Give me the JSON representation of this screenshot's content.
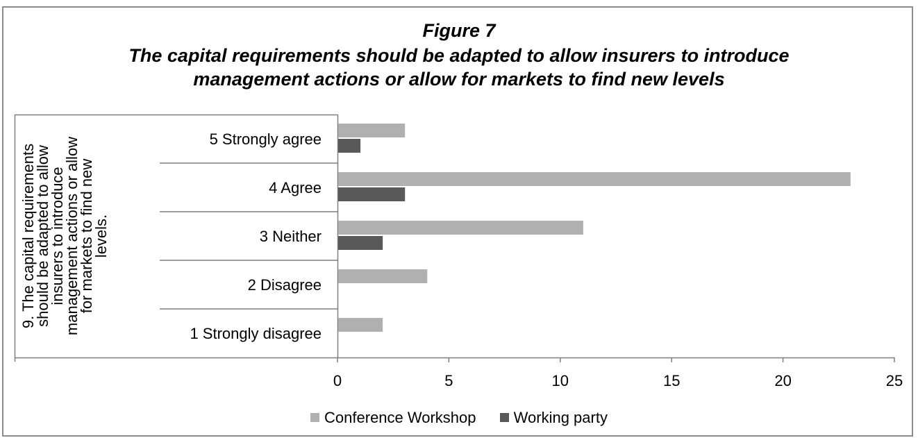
{
  "figure_label": "Figure 7",
  "title_line1": "The capital requirements should be adapted to allow insurers to introduce",
  "title_line2": "management actions or allow for markets to find new levels",
  "group_label_lines": [
    "9. The capital requirements",
    "should be adapted to allow",
    "insurers to introduce",
    "management actions or allow",
    "for markets to find new",
    "levels."
  ],
  "colors": {
    "conference": "#b0b0b0",
    "working": "#595959",
    "axis": "#7f7f7f"
  },
  "legend": {
    "conference_label": "Conference Workshop",
    "working_label": "Working party"
  },
  "chart_data": {
    "type": "bar",
    "orientation": "horizontal",
    "title": "The capital requirements should be adapted to allow insurers to introduce management actions or allow for markets to find new levels",
    "group_label": "9. The capital requirements should be adapted to allow insurers to introduce management actions or allow for markets to find new levels.",
    "categories": [
      "5 Strongly agree",
      "4 Agree",
      "3 Neither",
      "2 Disagree",
      "1 Strongly disagree"
    ],
    "series": [
      {
        "name": "Conference Workshop",
        "values": [
          3,
          23,
          11,
          4,
          2
        ]
      },
      {
        "name": "Working party",
        "values": [
          1,
          3,
          2,
          0,
          0
        ]
      }
    ],
    "xlim": [
      0,
      25
    ],
    "xticks": [
      0,
      5,
      10,
      15,
      20,
      25
    ],
    "grid": false,
    "legend_position": "bottom"
  }
}
